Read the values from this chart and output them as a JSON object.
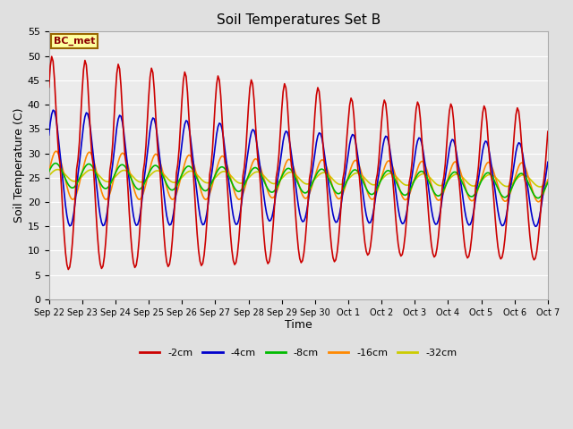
{
  "title": "Soil Temperatures Set B",
  "xlabel": "Time",
  "ylabel": "Soil Temperature (C)",
  "ylim": [
    0,
    55
  ],
  "yticks": [
    0,
    5,
    10,
    15,
    20,
    25,
    30,
    35,
    40,
    45,
    50,
    55
  ],
  "annotation": "BC_met",
  "series": {
    "-2cm": {
      "color": "#cc0000",
      "linewidth": 1.2
    },
    "-4cm": {
      "color": "#0000cc",
      "linewidth": 1.2
    },
    "-8cm": {
      "color": "#00bb00",
      "linewidth": 1.2
    },
    "-16cm": {
      "color": "#ff8800",
      "linewidth": 1.2
    },
    "-32cm": {
      "color": "#cccc00",
      "linewidth": 1.2
    }
  },
  "background_color": "#e0e0e0",
  "plot_bg_color": "#ebebeb",
  "grid_color": "#ffffff"
}
